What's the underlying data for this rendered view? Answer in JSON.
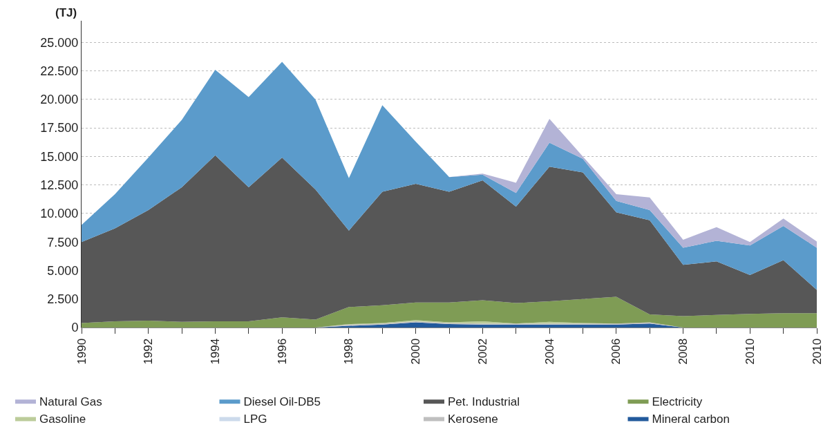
{
  "chart_data": {
    "type": "area",
    "stacked": true,
    "ylabel": "(TJ)",
    "categories": [
      "1990",
      null,
      "1992",
      null,
      "1994",
      null,
      "1996",
      null,
      "1998",
      null,
      "2000",
      null,
      "2002",
      null,
      "2004",
      null,
      "2006",
      null,
      "2008",
      null,
      "2010",
      null,
      "2010"
    ],
    "series": [
      {
        "name": "Mineral carbon",
        "color": "#225a9c",
        "values": [
          0,
          0,
          0,
          0,
          0,
          0,
          0,
          0,
          150,
          250,
          450,
          300,
          250,
          250,
          250,
          250,
          250,
          350,
          0,
          0,
          0,
          0,
          0
        ]
      },
      {
        "name": "Kerosene",
        "color": "#bfbfbf",
        "values": [
          0,
          0,
          0,
          0,
          0,
          0,
          0,
          0,
          100,
          100,
          100,
          100,
          100,
          100,
          100,
          100,
          100,
          100,
          0,
          0,
          0,
          0,
          0
        ]
      },
      {
        "name": "LPG",
        "color": "#ccdaeb",
        "values": [
          null,
          null,
          null,
          null,
          null,
          null,
          null,
          null,
          null,
          null,
          null,
          null,
          null,
          null,
          null,
          null,
          null,
          null,
          null,
          null,
          null,
          null,
          null
        ]
      },
      {
        "name": "Gasoline",
        "color": "#bccc9a",
        "values": [
          0,
          0,
          0,
          0,
          0,
          0,
          0,
          0,
          50,
          50,
          100,
          50,
          200,
          0,
          150,
          50,
          0,
          0,
          0,
          0,
          0,
          0,
          0
        ]
      },
      {
        "name": "Electricity",
        "color": "#7f9c55",
        "values": [
          400,
          550,
          600,
          500,
          550,
          550,
          900,
          700,
          1500,
          1550,
          1550,
          1750,
          1850,
          1800,
          1800,
          2100,
          2350,
          700,
          1000,
          1100,
          1200,
          1250,
          1250
        ]
      },
      {
        "name": "Pet. Industrial",
        "color": "#575757",
        "values": [
          7100,
          8150,
          9700,
          11800,
          14550,
          11750,
          14000,
          11400,
          6700,
          9950,
          10400,
          9700,
          10500,
          8450,
          11800,
          11100,
          7400,
          8250,
          4500,
          4700,
          3400,
          4650,
          2050
        ]
      },
      {
        "name": "Diesel Oil-DB5",
        "color": "#5b9bcb",
        "values": [
          1500,
          3000,
          4600,
          5900,
          7500,
          7900,
          8400,
          7900,
          4600,
          7600,
          3700,
          1300,
          500,
          1200,
          2100,
          1200,
          1000,
          900,
          1500,
          1800,
          2600,
          3000,
          3700
        ]
      },
      {
        "name": "Natural Gas",
        "color": "#b3b3d6",
        "values": [
          0,
          0,
          0,
          0,
          0,
          0,
          0,
          0,
          0,
          0,
          0,
          0,
          100,
          900,
          2100,
          200,
          600,
          1100,
          700,
          1200,
          300,
          650,
          550
        ]
      }
    ],
    "ylim": [
      0,
      26900
    ],
    "yticks": [
      {
        "value": 0,
        "label": "0"
      },
      {
        "value": 2500,
        "label": "2.500"
      },
      {
        "value": 5000,
        "label": "5.000"
      },
      {
        "value": 7500,
        "label": "7.500"
      },
      {
        "value": 10000,
        "label": "10.000"
      },
      {
        "value": 12500,
        "label": "12.500"
      },
      {
        "value": 15000,
        "label": "15.000"
      },
      {
        "value": 17500,
        "label": "17.500"
      },
      {
        "value": 20000,
        "label": "20.000"
      },
      {
        "value": 22500,
        "label": "22.500"
      },
      {
        "value": 25000,
        "label": "25.000"
      }
    ],
    "grid": "y",
    "legend": "bottom"
  }
}
